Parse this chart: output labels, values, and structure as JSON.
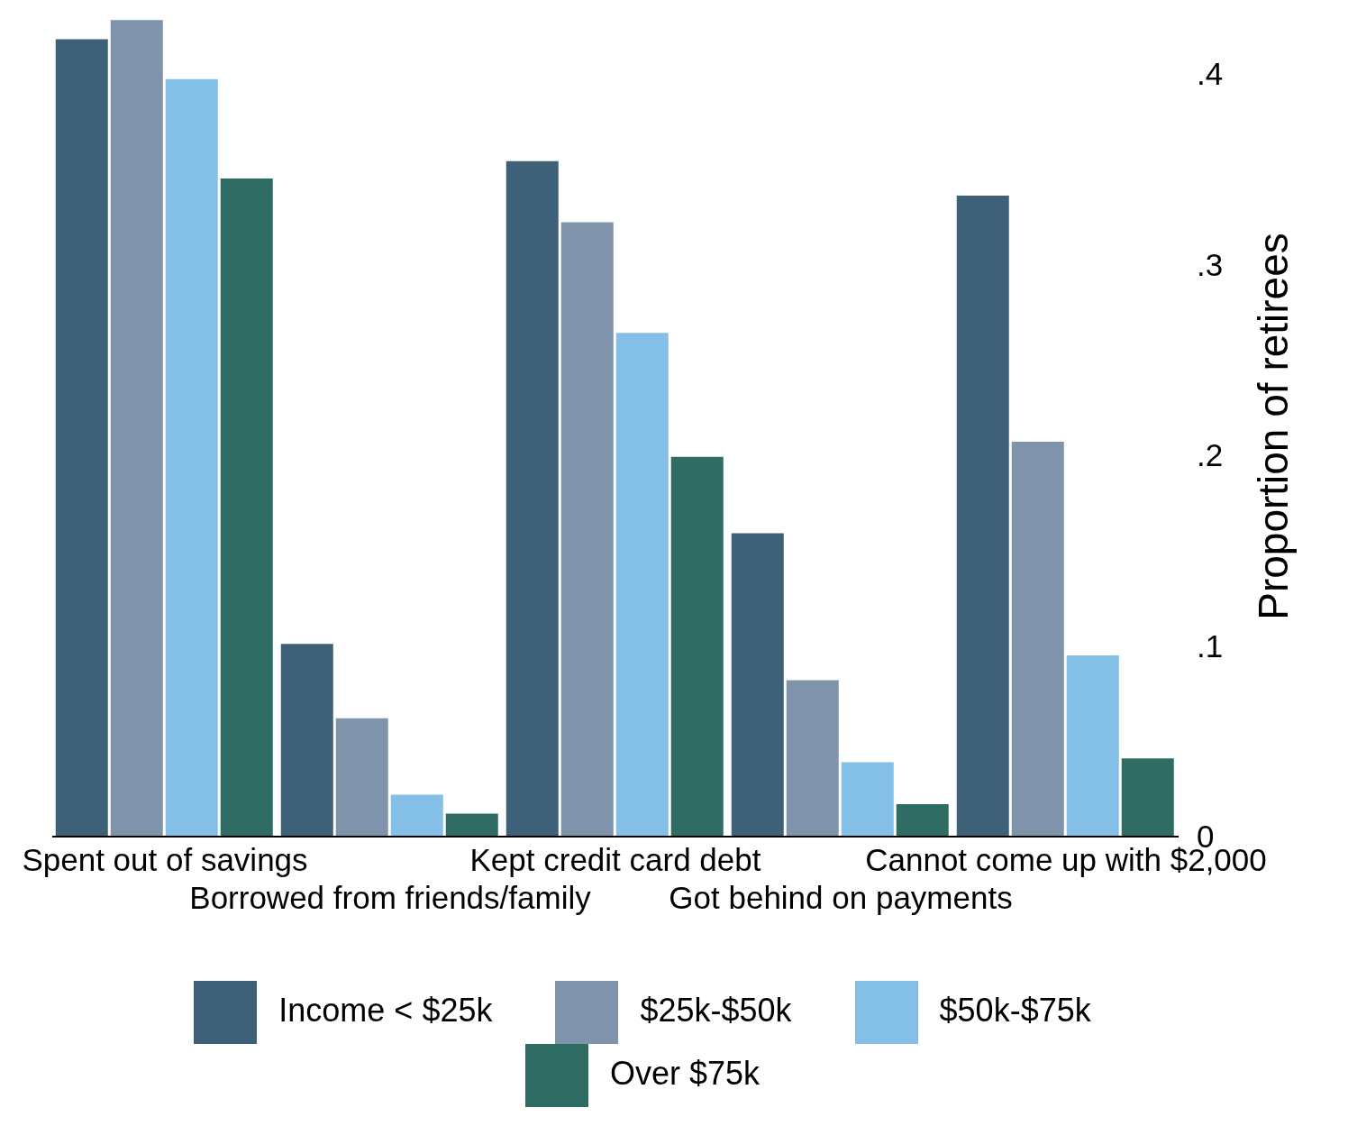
{
  "chart_data": {
    "type": "bar",
    "ylabel": "Proportion of retirees",
    "categories": [
      "Spent out of savings",
      "Borrowed from friends/family",
      "Kept credit card debt",
      "Got behind on payments",
      "Cannot come up with $2,000"
    ],
    "series": [
      {
        "name": "Income < $25k",
        "color": "#3f6079",
        "values": [
          0.418,
          0.101,
          0.354,
          0.159,
          0.336
        ]
      },
      {
        "name": "$25k-$50k",
        "color": "#7f93aa",
        "values": [
          0.428,
          0.062,
          0.322,
          0.082,
          0.207
        ]
      },
      {
        "name": "$50k-$75k",
        "color": "#84bfe8",
        "values": [
          0.397,
          0.022,
          0.264,
          0.039,
          0.095
        ]
      },
      {
        "name": "Over $75k",
        "color": "#2f6c63",
        "values": [
          0.345,
          0.012,
          0.199,
          0.017,
          0.041
        ]
      }
    ],
    "ylim": [
      0,
      0.43
    ],
    "yticks": [
      {
        "value": 0,
        "label": "0"
      },
      {
        "value": 0.1,
        "label": ".1"
      },
      {
        "value": 0.2,
        "label": ".2"
      },
      {
        "value": 0.3,
        "label": ".3"
      },
      {
        "value": 0.4,
        "label": ".4"
      }
    ],
    "grid": false,
    "legend": "bottom"
  }
}
